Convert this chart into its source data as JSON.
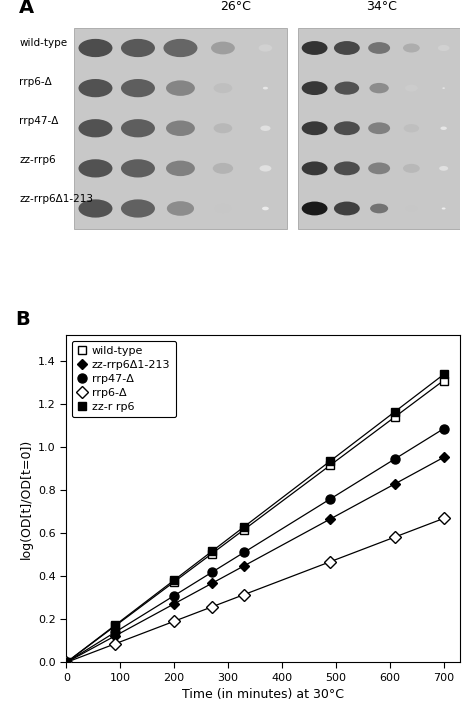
{
  "panel_A": {
    "title_26": "26°C",
    "title_34": "34°C",
    "row_labels": [
      "wild-type",
      "rrp6-Δ",
      "rrp47-Δ",
      "zz-rrp6",
      "zz-rrp6Δ1-213"
    ],
    "panel_label": "A",
    "spots_26": [
      [
        0.3,
        0.35,
        0.4,
        0.62,
        0.82
      ],
      [
        0.32,
        0.37,
        0.52,
        0.75,
        0.9
      ],
      [
        0.32,
        0.37,
        0.5,
        0.72,
        0.88
      ],
      [
        0.32,
        0.37,
        0.5,
        0.7,
        0.88
      ],
      [
        0.32,
        0.38,
        0.55,
        0.78,
        0.92
      ]
    ],
    "spots_34": [
      [
        0.2,
        0.28,
        0.45,
        0.68,
        0.82
      ],
      [
        0.22,
        0.32,
        0.55,
        0.8,
        0.92
      ],
      [
        0.22,
        0.3,
        0.5,
        0.75,
        0.9
      ],
      [
        0.22,
        0.3,
        0.5,
        0.72,
        0.88
      ],
      [
        0.1,
        0.25,
        0.45,
        0.78,
        0.93
      ]
    ],
    "spot_sizes_26": [
      [
        1.0,
        1.0,
        1.0,
        0.7,
        0.4
      ],
      [
        1.0,
        1.0,
        0.85,
        0.55,
        0.15
      ],
      [
        1.0,
        1.0,
        0.85,
        0.55,
        0.3
      ],
      [
        1.0,
        1.0,
        0.85,
        0.6,
        0.35
      ],
      [
        1.0,
        1.0,
        0.8,
        0.5,
        0.2
      ]
    ],
    "spot_sizes_34": [
      [
        1.0,
        1.0,
        0.85,
        0.65,
        0.45
      ],
      [
        1.0,
        0.95,
        0.75,
        0.5,
        0.1
      ],
      [
        1.0,
        1.0,
        0.85,
        0.6,
        0.25
      ],
      [
        1.0,
        1.0,
        0.85,
        0.65,
        0.35
      ],
      [
        1.0,
        1.0,
        0.7,
        0.45,
        0.15
      ]
    ]
  },
  "panel_B": {
    "panel_label": "B",
    "xlabel": "Time (in minutes) at 30°C",
    "ylabel": "log(OD[t]/OD[t=0])",
    "xlim": [
      0,
      730
    ],
    "ylim": [
      0.0,
      1.52
    ],
    "yticks": [
      0.0,
      0.2,
      0.4,
      0.6,
      0.8,
      1.0,
      1.2,
      1.4
    ],
    "xticks": [
      0,
      100,
      200,
      300,
      400,
      500,
      600,
      700
    ],
    "series": {
      "wild_type": {
        "label": "wild-type",
        "marker": "s",
        "filled": false,
        "slope": 0.00187,
        "x": [
          0,
          90,
          200,
          270,
          330,
          490,
          610,
          700
        ]
      },
      "zz_rrp6_delta": {
        "label": "zz-rrp6Δ1-213",
        "marker": "D",
        "filled": true,
        "slope": 0.00136,
        "x": [
          0,
          90,
          200,
          270,
          330,
          490,
          610,
          700
        ]
      },
      "rrp47": {
        "label": "rrp47-Δ",
        "marker": "o",
        "filled": true,
        "slope": 0.00155,
        "x": [
          0,
          90,
          200,
          270,
          330,
          490,
          610,
          700
        ]
      },
      "rrp6": {
        "label": "rrp6-Δ",
        "marker": "D",
        "filled": false,
        "slope": 0.000955,
        "x": [
          0,
          90,
          200,
          270,
          330,
          490,
          610,
          700
        ]
      },
      "zz_rrp6": {
        "label": "zz-r rp6",
        "marker": "s",
        "filled": true,
        "slope": 0.00191,
        "x": [
          0,
          90,
          200,
          270,
          330,
          490,
          610,
          700
        ]
      }
    }
  },
  "background_color": "#ffffff",
  "figure_width": 4.74,
  "figure_height": 7.2,
  "dpi": 100
}
